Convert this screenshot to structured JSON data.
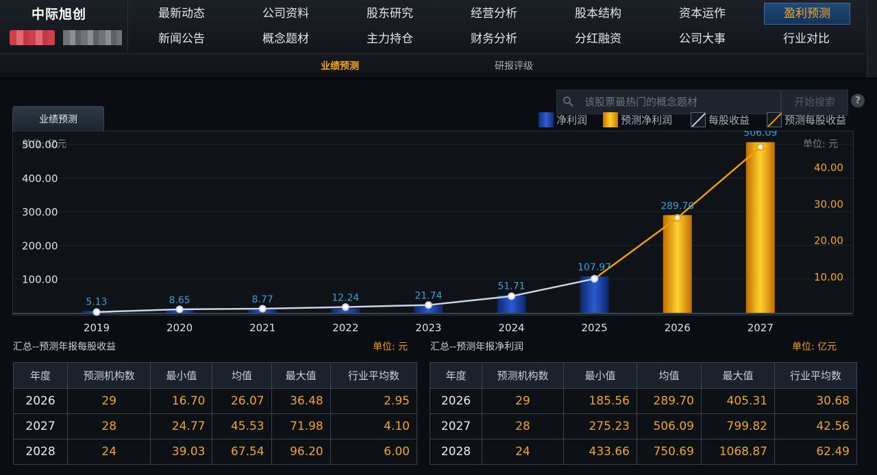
{
  "header": {
    "stock_name": "中际旭创",
    "nav_row1": [
      "最新动态",
      "公司资料",
      "股东研究",
      "经营分析",
      "股本结构",
      "资本运作",
      "盈利预测"
    ],
    "nav_row2": [
      "新闻公告",
      "概念题材",
      "主力持仓",
      "财务分析",
      "分红融资",
      "公司大事",
      "行业对比"
    ],
    "active_nav": "盈利预测",
    "subnav": [
      "业绩预测",
      "研报评级"
    ],
    "active_sub": "业绩预测"
  },
  "search": {
    "placeholder": "该股票最热门的概念题材",
    "button_label": "开始搜索",
    "help_icon": "?"
  },
  "panel": {
    "tab_label": "业绩预测",
    "legend": [
      {
        "label": "净利润",
        "icon": "netprofit-bar-swatch",
        "color": "#1f4fc0"
      },
      {
        "label": "预测净利润",
        "icon": "forecast-bar-swatch",
        "color": "#f4b400"
      },
      {
        "label": "每股收益",
        "icon": "eps-line-swatch",
        "color": "#c9d6e6"
      },
      {
        "label": "预测每股收益",
        "icon": "forecast-eps-line-swatch",
        "color": "#f29f05"
      }
    ],
    "left_unit": "单位: 亿元",
    "right_unit": "单位: 元"
  },
  "chart_data": {
    "type": "bar",
    "categories": [
      "2019",
      "2020",
      "2021",
      "2022",
      "2023",
      "2024",
      "2025",
      "2026",
      "2027"
    ],
    "series": [
      {
        "name": "净利润",
        "axis": "left",
        "color": "#1f4fc0",
        "values": [
          5.13,
          8.65,
          8.77,
          12.24,
          21.74,
          51.71,
          107.97,
          null,
          null
        ]
      },
      {
        "name": "预测净利润",
        "axis": "left",
        "color": "#f4b400",
        "values": [
          null,
          null,
          null,
          null,
          null,
          null,
          null,
          289.7,
          506.09
        ]
      },
      {
        "name": "每股收益",
        "type": "line",
        "axis": "right",
        "color": "#c9d6e6",
        "values": [
          0.2,
          0.97,
          1.13,
          1.57,
          2.13,
          4.56,
          9.34,
          null,
          null
        ]
      },
      {
        "name": "预测每股收益",
        "type": "line",
        "axis": "right",
        "color": "#f29f05",
        "values": [
          null,
          null,
          null,
          null,
          null,
          null,
          9.34,
          26.07,
          45.53
        ]
      }
    ],
    "data_labels": [
      "5.13",
      "8.65",
      "8.77",
      "12.24",
      "21.74",
      "51.71",
      "107.97",
      "289.70",
      "506.09"
    ],
    "left_ticks": [
      "500.00",
      "400.00",
      "300.00",
      "200.00",
      "100.00"
    ],
    "left_tick_values": [
      500,
      400,
      300,
      200,
      100
    ],
    "right_ticks": [
      "40.00",
      "30.00",
      "20.00",
      "10.00"
    ],
    "right_tick_values": [
      40,
      30,
      20,
      10
    ],
    "ylim_left": [
      0,
      540
    ],
    "ylim_right": [
      0,
      50
    ],
    "grid": true
  },
  "eps_table": {
    "title": "汇总--预测年报每股收益",
    "unit": "单位: 元",
    "headers": [
      "年度",
      "预测机构数",
      "最小值",
      "均值",
      "最大值",
      "行业平均数"
    ],
    "rows": [
      [
        "2026",
        "29",
        "16.70",
        "26.07",
        "36.48",
        "2.95"
      ],
      [
        "2027",
        "28",
        "24.77",
        "45.53",
        "71.98",
        "4.10"
      ],
      [
        "2028",
        "24",
        "39.03",
        "67.54",
        "96.20",
        "6.00"
      ]
    ]
  },
  "profit_table": {
    "title": "汇总--预测年报净利润",
    "unit": "单位: 亿元",
    "headers": [
      "年度",
      "预测机构数",
      "最小值",
      "均值",
      "最大值",
      "行业平均数"
    ],
    "rows": [
      [
        "2026",
        "29",
        "185.56",
        "289.70",
        "405.31",
        "30.68"
      ],
      [
        "2027",
        "28",
        "275.23",
        "506.09",
        "799.82",
        "42.56"
      ],
      [
        "2028",
        "24",
        "433.66",
        "750.69",
        "1068.87",
        "62.49"
      ]
    ]
  }
}
